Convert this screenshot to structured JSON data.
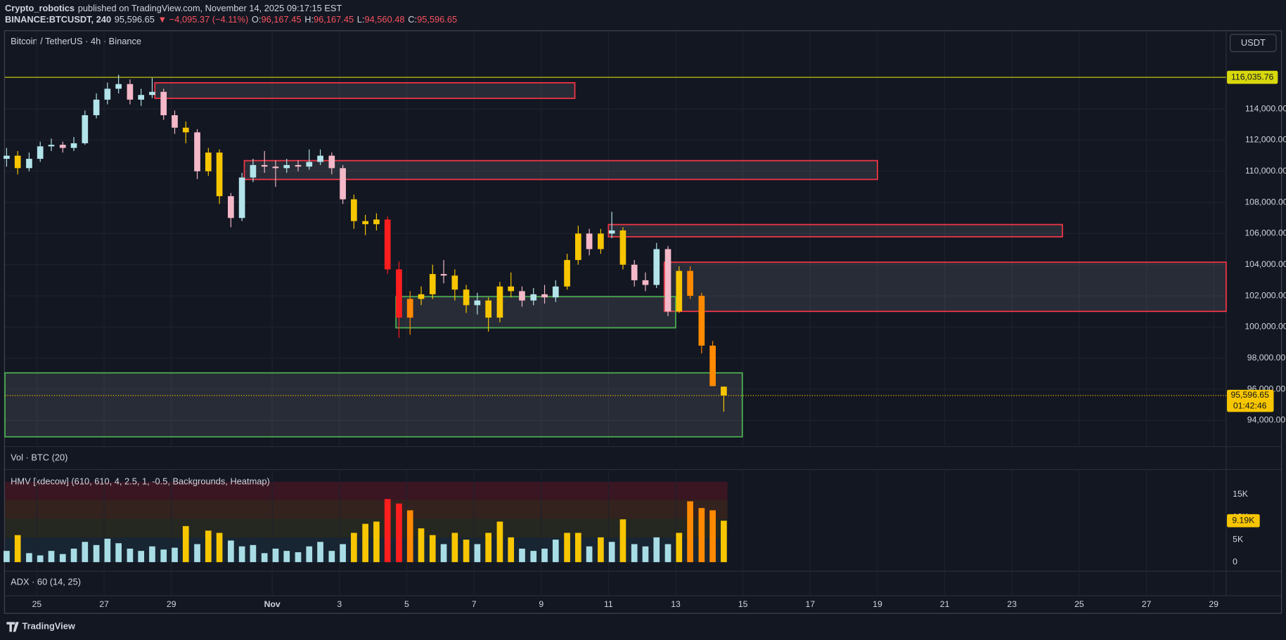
{
  "header": {
    "publisher": "Crypto_robotics",
    "published": "published on TradingView.com, November 14, 2025 09:17:15 EST",
    "symbol": "BINANCE:BTCUSDT, 240",
    "last": "95,596.65",
    "change": "▼ −4,095.37 (−4.11%)",
    "ohlc": [
      {
        "label": "O:",
        "value": "96,167.45"
      },
      {
        "label": "H:",
        "value": "96,167.45"
      },
      {
        "label": "L:",
        "value": "94,560.48"
      },
      {
        "label": "C:",
        "value": "95,596.65"
      }
    ]
  },
  "chart_data": {
    "type": "candlestick",
    "title": "Bitcoin / TetherUS · 4h · Binance",
    "currency": "USDT",
    "up_color": "#b2e4ea",
    "down_color": "#f4b8c8",
    "x": [
      -0.9,
      -0.57,
      -0.23,
      0.1,
      0.43,
      0.77,
      1.1,
      1.43,
      1.77,
      2.1,
      2.43,
      2.77,
      3.1,
      3.43,
      3.77,
      4.1,
      4.43,
      4.77,
      5.1,
      5.43,
      5.77,
      6.1,
      6.43,
      6.77,
      7.1,
      7.43,
      7.77,
      8.1,
      8.43,
      8.77,
      9.1,
      9.43,
      9.77,
      10.1,
      10.43,
      10.77,
      11.1,
      11.43,
      11.77,
      12.1,
      12.43,
      12.77,
      13.1,
      13.43,
      13.77,
      14.1,
      14.43,
      14.77,
      15.1,
      15.43,
      15.77,
      16.1,
      16.43,
      16.77,
      17.1,
      17.43,
      17.77,
      18.1,
      18.43,
      18.77,
      19.1,
      19.43,
      19.77,
      20.1,
      20.43
    ],
    "open": [
      110800,
      111000,
      110200,
      110800,
      111600,
      111700,
      111500,
      111800,
      113600,
      114600,
      115300,
      115600,
      114600,
      114900,
      115100,
      113600,
      112800,
      112500,
      110000,
      111200,
      108400,
      107000,
      109600,
      110400,
      110300,
      110200,
      110400,
      110300,
      110600,
      111000,
      110200,
      108200,
      106800,
      106600,
      106900,
      103700,
      100600,
      101800,
      102100,
      103400,
      103300,
      102400,
      101400,
      101700,
      100600,
      102600,
      102300,
      101700,
      102100,
      101900,
      102600,
      104300,
      106000,
      105000,
      106000,
      106200,
      104000,
      103000,
      102700,
      105000,
      101000,
      103600,
      102000,
      98800,
      96167.45
    ],
    "high": [
      111500,
      111300,
      111200,
      111900,
      112100,
      111900,
      112200,
      113900,
      115000,
      115700,
      116200,
      115900,
      115300,
      116000,
      115300,
      113900,
      113200,
      112700,
      111500,
      111400,
      108600,
      109900,
      110800,
      111300,
      110700,
      110800,
      110700,
      111400,
      111400,
      111200,
      110400,
      108500,
      107200,
      107300,
      107100,
      104200,
      102300,
      102600,
      104000,
      104300,
      103700,
      102700,
      102200,
      101900,
      102900,
      103500,
      102600,
      102500,
      102700,
      103000,
      104700,
      106500,
      106300,
      106300,
      107400,
      106400,
      104300,
      103500,
      105400,
      105200,
      103900,
      103900,
      102200,
      99100,
      96167.45
    ],
    "low": [
      110300,
      109800,
      110000,
      110600,
      111300,
      111200,
      111300,
      111700,
      113400,
      114300,
      115000,
      114300,
      114200,
      114700,
      113300,
      112400,
      111800,
      109500,
      109700,
      107900,
      106400,
      106800,
      109300,
      109900,
      109000,
      109900,
      110000,
      110100,
      110400,
      109800,
      107900,
      106300,
      105900,
      106200,
      103400,
      99300,
      99500,
      101400,
      101800,
      102800,
      101700,
      100900,
      100800,
      99700,
      100300,
      101900,
      101300,
      101400,
      101500,
      101600,
      102400,
      104000,
      104600,
      104700,
      105700,
      103700,
      102600,
      102300,
      102500,
      100700,
      100900,
      101800,
      98300,
      96400,
      94560.48
    ],
    "close": [
      111000,
      110200,
      110800,
      111600,
      111700,
      111500,
      111800,
      113600,
      114600,
      115300,
      115600,
      114600,
      114900,
      115100,
      113600,
      112800,
      112500,
      110000,
      111200,
      108400,
      107000,
      109600,
      110400,
      110300,
      110200,
      110400,
      110300,
      110600,
      111000,
      110200,
      108200,
      106800,
      106600,
      106900,
      103700,
      100600,
      101800,
      102100,
      103400,
      103300,
      102400,
      101400,
      101700,
      100600,
      102600,
      102300,
      101700,
      102100,
      101900,
      102600,
      104300,
      106000,
      105000,
      106000,
      106200,
      104000,
      103000,
      102700,
      105000,
      101000,
      103600,
      102000,
      98800,
      96200,
      95596.65
    ],
    "xlim": [
      -0.95,
      35.37
    ],
    "xticks": [
      {
        "value": 0,
        "label": "25"
      },
      {
        "value": 2,
        "label": "27"
      },
      {
        "value": 4,
        "label": "29"
      },
      {
        "value": 7,
        "label": "Nov"
      },
      {
        "value": 9,
        "label": "3"
      },
      {
        "value": 11,
        "label": "5"
      },
      {
        "value": 13,
        "label": "7"
      },
      {
        "value": 15,
        "label": "9"
      },
      {
        "value": 17,
        "label": "11"
      },
      {
        "value": 19,
        "label": "13"
      },
      {
        "value": 21,
        "label": "15"
      },
      {
        "value": 23,
        "label": "17"
      },
      {
        "value": 25,
        "label": "19"
      },
      {
        "value": 27,
        "label": "21"
      },
      {
        "value": 29,
        "label": "23"
      },
      {
        "value": 31,
        "label": "25"
      },
      {
        "value": 33,
        "label": "27"
      },
      {
        "value": 35,
        "label": "29"
      }
    ],
    "ylim": [
      92316,
      119000
    ],
    "yticks": [
      {
        "value": 94000,
        "label": "94,000.00"
      },
      {
        "value": 96000,
        "label": "96,000.00"
      },
      {
        "value": 98000,
        "label": "98,000.00"
      },
      {
        "value": 100000,
        "label": "100,000.00"
      },
      {
        "value": 102000,
        "label": "102,000.00"
      },
      {
        "value": 104000,
        "label": "104,000.00"
      },
      {
        "value": 106000,
        "label": "106,000.00"
      },
      {
        "value": 108000,
        "label": "108,000.00"
      },
      {
        "value": 110000,
        "label": "110,000.00"
      },
      {
        "value": 112000,
        "label": "112,000.00"
      },
      {
        "value": 114000,
        "label": "114,000.00"
      }
    ],
    "grid": true,
    "last_price": {
      "value": 95596.65,
      "label": "95,596.65",
      "countdown": "01:42:46"
    },
    "level_line": {
      "value": 116035.76,
      "label": "116,035.76",
      "color": "#d8d80c"
    },
    "zones": [
      {
        "x": [
          3.51,
          16.0
        ],
        "y": [
          114684,
          115684
        ],
        "color": "#f23645"
      },
      {
        "x": [
          6.17,
          25.0
        ],
        "y": [
          109474,
          110684
        ],
        "color": "#f23645"
      },
      {
        "x": [
          17.0,
          30.5
        ],
        "y": [
          105789,
          106579
        ],
        "color": "#f23645"
      },
      {
        "x": [
          18.66,
          35.37
        ],
        "y": [
          101000,
          104158
        ],
        "color": "#f23645"
      },
      {
        "x": [
          10.68,
          19.0
        ],
        "y": [
          99947,
          101947
        ],
        "color": "#4caf50"
      },
      {
        "x": [
          -0.95,
          20.98
        ],
        "y": [
          92947,
          97053
        ],
        "color": "#4caf50"
      }
    ],
    "volume_title": "Vol · BTC (20)",
    "heatmap": {
      "title": "HMV [xdecow] (610, 610, 4, 2.5, 1, -0.5, Backgrounds, Heatmap)",
      "values": [
        2500,
        6000,
        2000,
        1500,
        2500,
        1800,
        3000,
        4500,
        3800,
        5200,
        4200,
        3000,
        2500,
        3500,
        2800,
        3200,
        8000,
        4000,
        7000,
        6500,
        4800,
        3500,
        3800,
        2000,
        3000,
        2500,
        2200,
        3500,
        4500,
        2500,
        4000,
        6500,
        8500,
        9000,
        14000,
        13000,
        11500,
        7500,
        6000,
        4000,
        6500,
        5000,
        4000,
        6500,
        9000,
        5500,
        3000,
        2500,
        3000,
        5000,
        6500,
        6500,
        3500,
        5500,
        4500,
        9500,
        4000,
        3500,
        5500,
        4000,
        6500,
        13500,
        12000,
        11500,
        9190
      ],
      "levels": [
        0,
        1,
        0,
        0,
        0,
        0,
        0,
        0,
        0,
        0,
        0,
        0,
        0,
        0,
        0,
        0,
        1,
        0,
        1,
        1,
        0,
        0,
        0,
        0,
        0,
        0,
        0,
        0,
        0,
        0,
        0,
        1,
        1,
        1,
        3,
        3,
        2,
        1,
        1,
        0,
        1,
        1,
        0,
        1,
        1,
        1,
        0,
        0,
        0,
        0,
        1,
        1,
        0,
        1,
        0,
        1,
        0,
        0,
        0,
        0,
        1,
        2,
        2,
        2,
        1
      ],
      "palette": [
        "#a8dde5",
        "#f7c600",
        "#ff8a00",
        "#ff1e1e"
      ],
      "ylim": [
        -2000,
        20180
      ],
      "yticks": [
        0,
        {
          "value": 5000,
          "label": "5K"
        },
        {
          "value": 10000,
          "label": "10K"
        },
        {
          "value": 15000,
          "label": "15K"
        }
      ],
      "last_label": "9.19K"
    },
    "adx_title": "ADX · 60 (14, 25)"
  },
  "footer": {
    "logo": "TradingView"
  }
}
